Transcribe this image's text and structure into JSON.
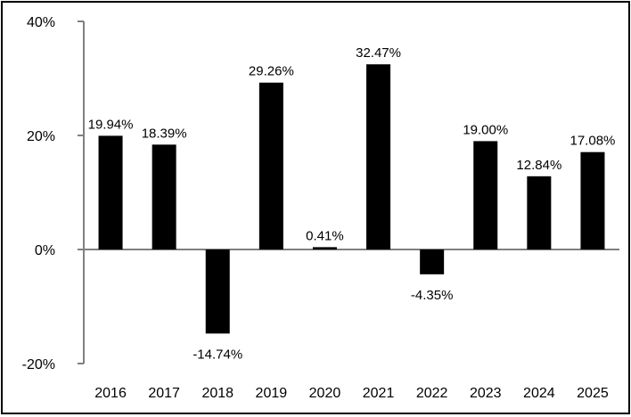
{
  "chart_data": {
    "type": "bar",
    "categories": [
      "2016",
      "2017",
      "2018",
      "2019",
      "2020",
      "2021",
      "2022",
      "2023",
      "2024",
      "2025"
    ],
    "values": [
      19.94,
      18.39,
      -14.74,
      29.26,
      0.41,
      32.47,
      -4.35,
      19.0,
      12.84,
      17.08
    ],
    "data_labels": [
      "19.94%",
      "18.39%",
      "-14.74%",
      "29.26%",
      "0.41%",
      "32.47%",
      "-4.35%",
      "19.00%",
      "12.84%",
      "17.08%"
    ],
    "y_ticks": [
      40,
      20,
      0,
      -20
    ],
    "y_tick_labels": [
      "40%",
      "20%",
      "0%",
      "-20%"
    ],
    "ylim": [
      -20,
      40
    ],
    "title": "",
    "xlabel": "",
    "ylabel": "",
    "grid": false,
    "legend": "none",
    "bar_color": "#000000"
  }
}
